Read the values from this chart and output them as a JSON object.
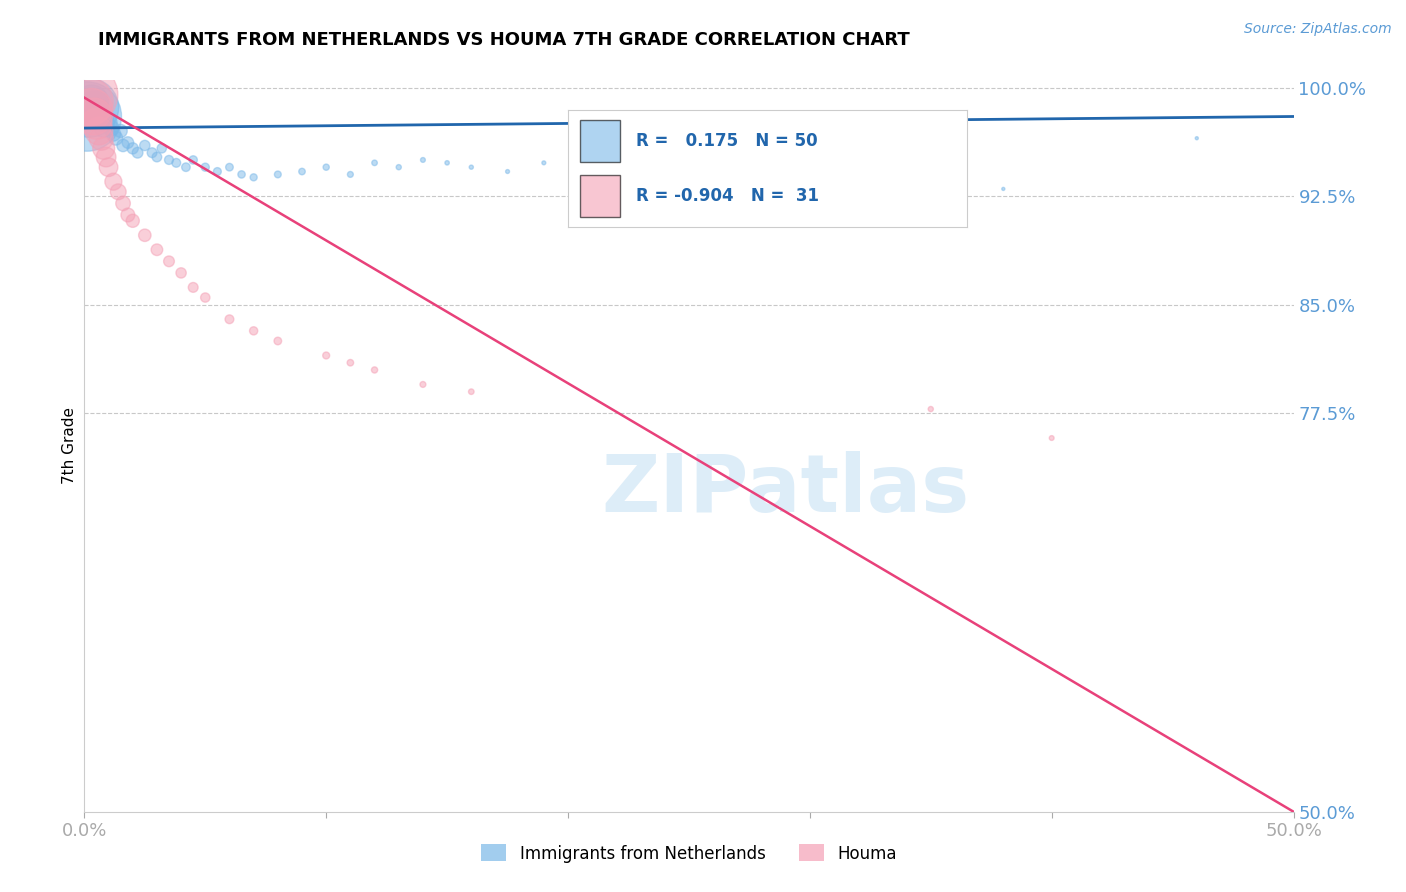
{
  "title": "IMMIGRANTS FROM NETHERLANDS VS HOUMA 7TH GRADE CORRELATION CHART",
  "source": "Source: ZipAtlas.com",
  "ylabel": "7th Grade",
  "xlim": [
    0.0,
    0.5
  ],
  "ylim": [
    0.5,
    1.005
  ],
  "x_ticks": [
    0.0,
    0.1,
    0.2,
    0.3,
    0.4,
    0.5
  ],
  "x_tick_labels": [
    "0.0%",
    "",
    "",
    "",
    "",
    "50.0%"
  ],
  "y_ticks_right": [
    0.5,
    0.775,
    0.85,
    0.925,
    1.0
  ],
  "y_tick_labels_right": [
    "50.0%",
    "77.5%",
    "85.0%",
    "92.5%",
    "100.0%"
  ],
  "blue_color": "#7bb8e8",
  "pink_color": "#f4a0b5",
  "blue_line_color": "#2166ac",
  "pink_line_color": "#e8417a",
  "R_blue": 0.175,
  "N_blue": 50,
  "R_pink": -0.904,
  "N_pink": 31,
  "legend_labels": [
    "Immigrants from Netherlands",
    "Houma"
  ],
  "watermark": "ZIPatlas",
  "grid_color": "#c8c8c8",
  "blue_x": [
    0.001,
    0.002,
    0.003,
    0.004,
    0.005,
    0.006,
    0.007,
    0.008,
    0.009,
    0.01,
    0.011,
    0.012,
    0.013,
    0.015,
    0.016,
    0.018,
    0.02,
    0.022,
    0.025,
    0.028,
    0.03,
    0.032,
    0.035,
    0.038,
    0.042,
    0.045,
    0.05,
    0.055,
    0.06,
    0.065,
    0.07,
    0.08,
    0.09,
    0.1,
    0.11,
    0.12,
    0.13,
    0.14,
    0.15,
    0.16,
    0.175,
    0.19,
    0.21,
    0.23,
    0.25,
    0.27,
    0.295,
    0.32,
    0.38,
    0.46
  ],
  "blue_y": [
    0.98,
    0.986,
    0.99,
    0.988,
    0.982,
    0.984,
    0.978,
    0.972,
    0.975,
    0.976,
    0.972,
    0.968,
    0.965,
    0.97,
    0.96,
    0.962,
    0.958,
    0.955,
    0.96,
    0.955,
    0.952,
    0.958,
    0.95,
    0.948,
    0.945,
    0.95,
    0.945,
    0.942,
    0.945,
    0.94,
    0.938,
    0.94,
    0.942,
    0.945,
    0.94,
    0.948,
    0.945,
    0.95,
    0.948,
    0.945,
    0.942,
    0.948,
    0.945,
    0.95,
    0.955,
    0.948,
    0.95,
    0.952,
    0.93,
    0.965
  ],
  "blue_sizes": [
    2500,
    1800,
    600,
    400,
    300,
    250,
    200,
    180,
    160,
    150,
    130,
    110,
    100,
    90,
    80,
    70,
    65,
    60,
    55,
    50,
    48,
    45,
    42,
    40,
    38,
    36,
    34,
    32,
    30,
    28,
    26,
    24,
    22,
    20,
    18,
    16,
    14,
    12,
    10,
    9,
    8,
    8,
    7,
    7,
    6,
    6,
    5,
    5,
    5,
    5
  ],
  "pink_x": [
    0.001,
    0.002,
    0.003,
    0.004,
    0.005,
    0.006,
    0.007,
    0.008,
    0.009,
    0.01,
    0.012,
    0.014,
    0.016,
    0.018,
    0.02,
    0.025,
    0.03,
    0.035,
    0.04,
    0.045,
    0.05,
    0.06,
    0.07,
    0.08,
    0.1,
    0.11,
    0.12,
    0.14,
    0.16,
    0.35,
    0.4
  ],
  "pink_y": [
    0.995,
    0.99,
    0.985,
    0.98,
    0.975,
    0.97,
    0.965,
    0.958,
    0.952,
    0.945,
    0.935,
    0.928,
    0.92,
    0.912,
    0.908,
    0.898,
    0.888,
    0.88,
    0.872,
    0.862,
    0.855,
    0.84,
    0.832,
    0.825,
    0.815,
    0.81,
    0.805,
    0.795,
    0.79,
    0.778,
    0.758
  ],
  "pink_sizes": [
    2000,
    1200,
    900,
    700,
    500,
    400,
    300,
    250,
    200,
    180,
    150,
    130,
    110,
    100,
    90,
    80,
    70,
    60,
    55,
    50,
    45,
    40,
    35,
    30,
    25,
    22,
    20,
    18,
    16,
    14,
    12
  ],
  "blue_line_x": [
    0.0,
    0.5
  ],
  "blue_line_y": [
    0.972,
    0.98
  ],
  "pink_line_x": [
    0.0,
    0.5
  ],
  "pink_line_y": [
    0.993,
    0.5
  ]
}
